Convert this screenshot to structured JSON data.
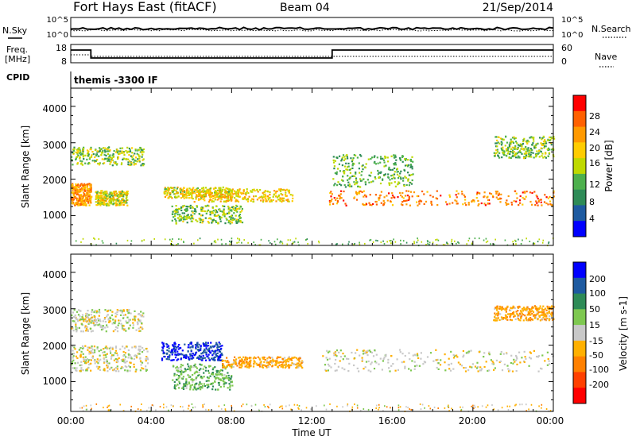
{
  "header": {
    "station": "Fort Hays East (fitACF)",
    "beam": "Beam 04",
    "date": "21/Sep/2014"
  },
  "top_panel": {
    "left_label": "N.Sky",
    "left_ticks": [
      "10^5",
      "10^0"
    ],
    "right_label": "N.Search",
    "right_ticks": [
      "10^5",
      "10^0"
    ]
  },
  "freq_panel": {
    "left_label_1": "Freq.",
    "left_label_2": "[MHz]",
    "left_ticks": [
      "18",
      "8"
    ],
    "right_label": "Nave",
    "right_ticks": [
      "60",
      "0"
    ],
    "cpid_label": "CPID",
    "cpid_value": "themis -3300 IF"
  },
  "chart_data": [
    {
      "type": "heatmap",
      "panel": "power",
      "ylabel": "Slant Range [km]",
      "y_ticks": [
        "4000",
        "3000",
        "2000",
        "1000"
      ],
      "ylim": [
        180,
        4500
      ],
      "colorbar_label": "Power [dB]",
      "colorbar_ticks": [
        "28",
        "24",
        "20",
        "16",
        "12",
        "8",
        "4"
      ],
      "colorbar_colors": [
        "#ff0000",
        "#ff6000",
        "#ff9900",
        "#ffcc00",
        "#bfd900",
        "#4db04d",
        "#2e8b57",
        "#1e5aa0",
        "#0000ff"
      ],
      "bands": [
        {
          "t": [
            0,
            1.0
          ],
          "r": [
            1300,
            1900
          ],
          "power": 20
        },
        {
          "t": [
            1.2,
            2.8
          ],
          "r": [
            1300,
            1700
          ],
          "power": 14
        },
        {
          "t": [
            0,
            3.6
          ],
          "r": [
            2400,
            2900
          ],
          "power": 10
        },
        {
          "t": [
            4.6,
            8.0
          ],
          "r": [
            1500,
            1800
          ],
          "power": 14
        },
        {
          "t": [
            5.0,
            8.5
          ],
          "r": [
            800,
            1300
          ],
          "power": 10
        },
        {
          "t": [
            6.0,
            11.0
          ],
          "r": [
            1400,
            1750
          ],
          "power": 16
        },
        {
          "t": [
            12.8,
            24.0
          ],
          "r": [
            1300,
            1700
          ],
          "power": 22
        },
        {
          "t": [
            13.0,
            17.0
          ],
          "r": [
            1800,
            2700
          ],
          "power": 8
        },
        {
          "t": [
            21.0,
            24.0
          ],
          "r": [
            2600,
            3200
          ],
          "power": 10
        }
      ]
    },
    {
      "type": "heatmap",
      "panel": "velocity",
      "xlabel": "Time UT",
      "ylabel": "Slant Range [km]",
      "x_ticks": [
        "00:00",
        "04:00",
        "08:00",
        "12:00",
        "16:00",
        "20:00",
        "00:00"
      ],
      "y_ticks": [
        "4000",
        "3000",
        "2000",
        "1000"
      ],
      "ylim": [
        180,
        4500
      ],
      "colorbar_label": "Velocity [m s-1]",
      "colorbar_ticks": [
        "200",
        "100",
        "50",
        "15",
        "-15",
        "-50",
        "-100",
        "-200"
      ],
      "colorbar_colors": [
        "#0000ff",
        "#1e5aa0",
        "#2e8b57",
        "#7ec850",
        "#c8c8c8",
        "#ffb000",
        "#ff8000",
        "#ff4000",
        "#ff0000"
      ],
      "bands": [
        {
          "t": [
            0,
            3.8
          ],
          "r": [
            1300,
            2000
          ],
          "velocity": 0
        },
        {
          "t": [
            4.5,
            7.5
          ],
          "r": [
            1600,
            2100
          ],
          "velocity": 200
        },
        {
          "t": [
            5.0,
            8.0
          ],
          "r": [
            800,
            1500
          ],
          "velocity": 40
        },
        {
          "t": [
            7.5,
            11.5
          ],
          "r": [
            1400,
            1700
          ],
          "velocity": -40
        },
        {
          "t": [
            12.5,
            24.0
          ],
          "r": [
            1300,
            1900
          ],
          "velocity": 0
        },
        {
          "t": [
            0,
            3.6
          ],
          "r": [
            2400,
            3000
          ],
          "velocity": 0
        },
        {
          "t": [
            21.0,
            24.0
          ],
          "r": [
            2700,
            3100
          ],
          "velocity": -40
        }
      ]
    }
  ]
}
